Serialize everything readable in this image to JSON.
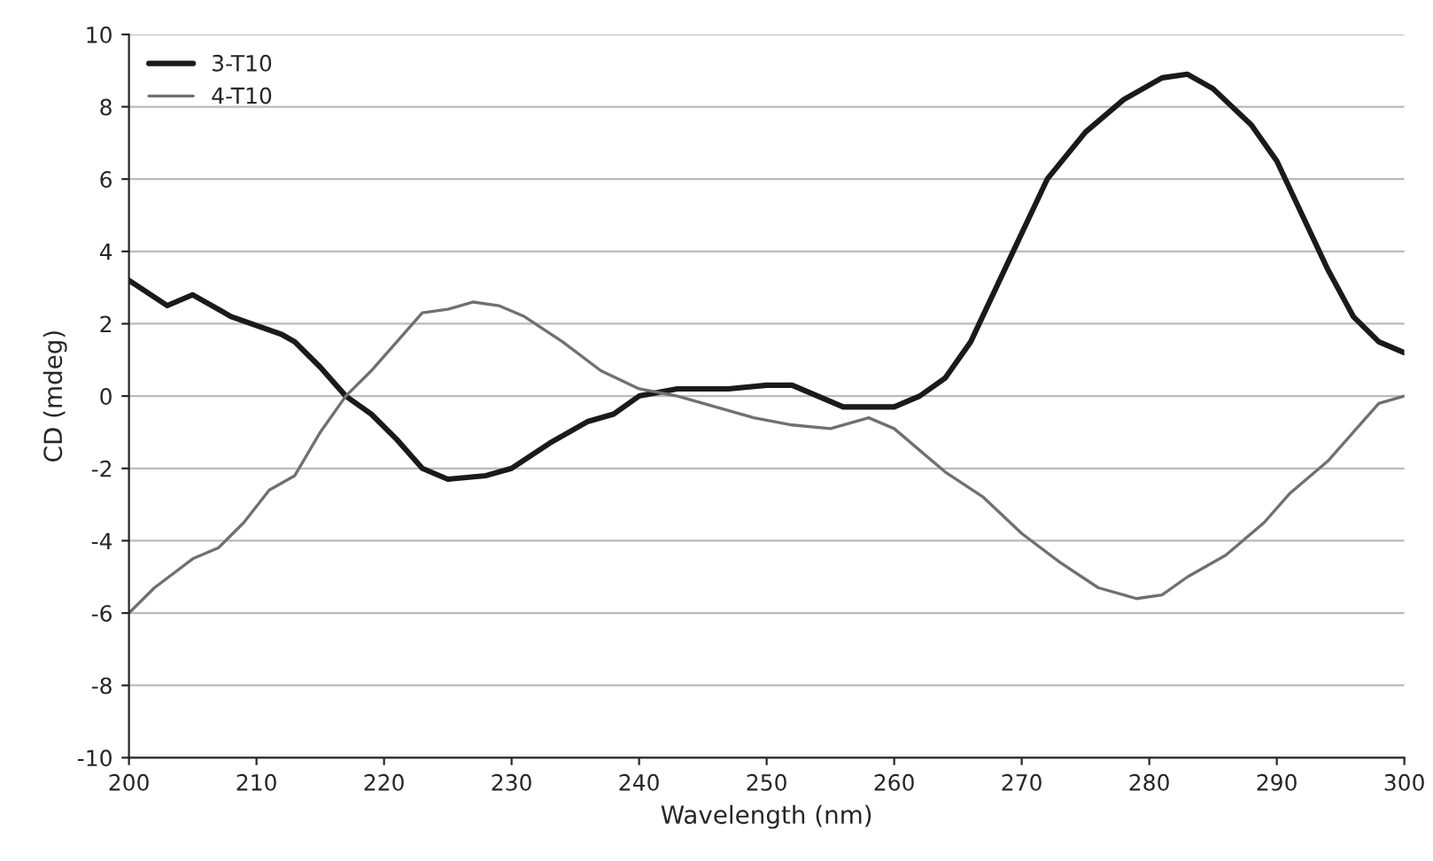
{
  "chart_data": {
    "type": "line",
    "xlabel": "Wavelength (nm)",
    "ylabel": "CD (mdeg)",
    "xlim": [
      200,
      300
    ],
    "xticks": [
      200,
      210,
      220,
      230,
      240,
      250,
      260,
      270,
      280,
      290,
      300
    ],
    "ylim": [
      -10,
      10
    ],
    "yticks": [
      -10,
      -8,
      -6,
      -4,
      -2,
      0,
      2,
      4,
      6,
      8,
      10
    ],
    "grid": "y",
    "legend": "top left",
    "marker": "none",
    "line_style": "solid",
    "series": [
      {
        "name": "3-T10",
        "color": "#1a1a1a",
        "x": [
          200,
          203,
          205,
          208,
          212,
          213,
          215,
          217,
          219,
          221,
          223,
          225,
          228,
          230,
          233,
          236,
          238,
          240,
          243,
          247,
          250,
          252,
          254,
          256,
          260,
          262,
          264,
          266,
          268,
          270,
          272,
          275,
          278,
          281,
          283,
          285,
          288,
          290,
          292,
          294,
          296,
          298,
          300
        ],
        "values": [
          3.2,
          2.5,
          2.8,
          2.2,
          1.7,
          1.5,
          0.8,
          0,
          -0.5,
          -1.2,
          -2,
          -2.3,
          -2.2,
          -2,
          -1.3,
          -0.7,
          -0.5,
          0,
          0.2,
          0.2,
          0.3,
          0.3,
          0,
          -0.3,
          -0.3,
          0,
          0.5,
          1.5,
          3,
          4.5,
          6,
          7.3,
          8.2,
          8.8,
          8.9,
          8.5,
          7.5,
          6.5,
          5,
          3.5,
          2.2,
          1.5,
          1.2
        ]
      },
      {
        "name": "4-T10",
        "color": "#707070",
        "x": [
          200,
          202,
          205,
          207,
          209,
          211,
          213,
          215,
          217,
          219,
          221,
          223,
          225,
          227,
          229,
          231,
          234,
          237,
          240,
          243,
          246,
          249,
          252,
          255,
          258,
          260,
          262,
          264,
          267,
          270,
          273,
          276,
          279,
          281,
          283,
          286,
          289,
          291,
          294,
          296,
          298,
          300
        ],
        "values": [
          -6,
          -5.3,
          -4.5,
          -4.2,
          -3.5,
          -2.6,
          -2.2,
          -1,
          0,
          0.7,
          1.5,
          2.3,
          2.4,
          2.6,
          2.5,
          2.2,
          1.5,
          0.7,
          0.2,
          0,
          -0.3,
          -0.6,
          -0.8,
          -0.9,
          -0.6,
          -0.9,
          -1.5,
          -2.1,
          -2.8,
          -3.8,
          -4.6,
          -5.3,
          -5.6,
          -5.5,
          -5,
          -4.4,
          -3.5,
          -2.7,
          -1.8,
          -1,
          -0.2,
          0
        ]
      }
    ]
  }
}
